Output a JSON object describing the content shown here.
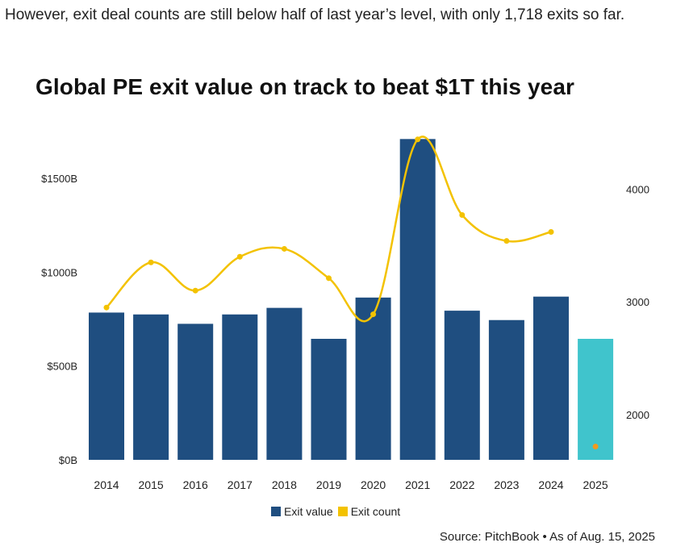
{
  "intro_text": "However, exit deal counts are still below half of last year’s level, with only 1,718 exits so far.",
  "colors": {
    "bar": "#1f4e80",
    "bar_highlight": "#40c4cc",
    "line": "#f3c200",
    "partial_point": "#f29a1e"
  },
  "chart_data": {
    "type": "bar",
    "title": "Global PE exit value on track to beat $1T this year",
    "categories": [
      "2014",
      "2015",
      "2016",
      "2017",
      "2018",
      "2019",
      "2020",
      "2021",
      "2022",
      "2023",
      "2024",
      "2025"
    ],
    "series": [
      {
        "name": "Exit value",
        "axis": "left",
        "values": [
          785,
          775,
          725,
          775,
          810,
          645,
          865,
          1710,
          795,
          745,
          870,
          645
        ]
      },
      {
        "name": "Exit count",
        "axis": "right",
        "type": "line",
        "values": [
          2950,
          3350,
          3100,
          3400,
          3470,
          3210,
          2890,
          4440,
          3770,
          3540,
          3620,
          1718
        ]
      }
    ],
    "y_left": {
      "ticks": [
        0,
        500,
        1000,
        1500
      ],
      "tick_labels": [
        "$0B",
        "$500B",
        "$1000B",
        "$1500B"
      ],
      "ylim": [
        0,
        1720
      ]
    },
    "y_right": {
      "ticks": [
        2000,
        3000,
        4000
      ],
      "tick_labels": [
        "2000",
        "3000",
        "4000"
      ],
      "ylim": [
        1600,
        4460
      ]
    },
    "legend": {
      "position": "bottom",
      "entries": [
        "Exit value",
        "Exit count"
      ]
    },
    "highlight_category": "2025",
    "grid": false
  },
  "source": "Source: PitchBook • As of Aug. 15, 2025"
}
